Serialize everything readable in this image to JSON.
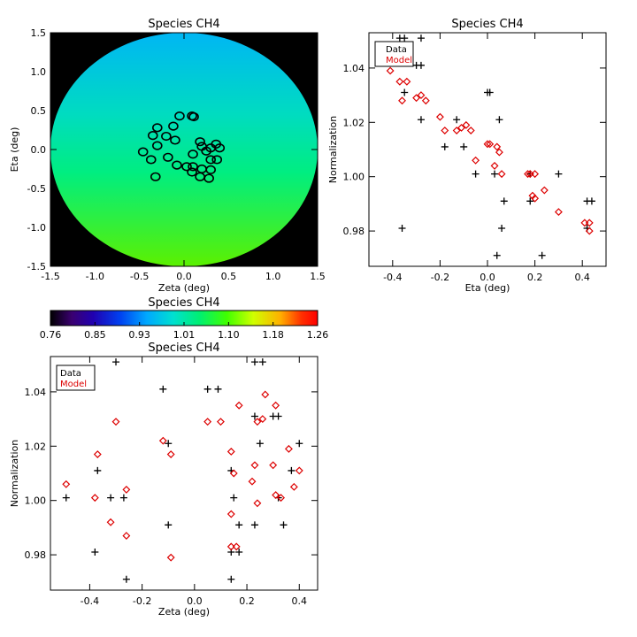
{
  "colors": {
    "data_marker": "#000000",
    "model_marker": "#dd0000",
    "background": "#000000",
    "axis": "#000000"
  },
  "chart_data": [
    {
      "id": "map",
      "type": "heatmap",
      "title": "Species CH4",
      "xlabel": "Zeta (deg)",
      "ylabel": "Eta (deg)",
      "xlim": [
        -1.5,
        1.5
      ],
      "ylim": [
        -1.5,
        1.5
      ],
      "xticks": [
        "-1.5",
        "-1.0",
        "-0.5",
        "0.0",
        "0.5",
        "1.0",
        "1.5"
      ],
      "yticks": [
        "-1.5",
        "-1.0",
        "-0.5",
        "0.0",
        "0.5",
        "1.0",
        "1.5"
      ],
      "field": {
        "radius_deg": 1.5,
        "value_at_top": 0.97,
        "value_at_bottom": 1.1
      },
      "ellipses": [
        [
          -0.05,
          0.43
        ],
        [
          0.09,
          0.43
        ],
        [
          0.11,
          0.42
        ],
        [
          -0.12,
          0.3
        ],
        [
          -0.3,
          0.28
        ],
        [
          -0.35,
          0.18
        ],
        [
          -0.2,
          0.17
        ],
        [
          -0.1,
          0.12
        ],
        [
          0.18,
          0.1
        ],
        [
          0.36,
          0.07
        ],
        [
          0.2,
          0.04
        ],
        [
          -0.3,
          0.05
        ],
        [
          0.3,
          0.02
        ],
        [
          0.4,
          0.02
        ],
        [
          -0.46,
          -0.03
        ],
        [
          0.25,
          -0.02
        ],
        [
          0.1,
          -0.06
        ],
        [
          -0.18,
          -0.1
        ],
        [
          -0.37,
          -0.13
        ],
        [
          0.3,
          -0.13
        ],
        [
          0.37,
          -0.13
        ],
        [
          -0.08,
          -0.2
        ],
        [
          0.03,
          -0.22
        ],
        [
          0.1,
          -0.22
        ],
        [
          0.2,
          -0.25
        ],
        [
          0.3,
          -0.26
        ],
        [
          0.09,
          -0.29
        ],
        [
          -0.32,
          -0.35
        ],
        [
          0.18,
          -0.35
        ],
        [
          0.28,
          -0.37
        ]
      ]
    },
    {
      "id": "eta",
      "type": "scatter",
      "title": "Species CH4",
      "xlabel": "Eta (deg)",
      "ylabel": "Normalization",
      "xlim": [
        -0.5,
        0.5
      ],
      "ylim": [
        0.967,
        1.053
      ],
      "xticks": [
        -0.4,
        -0.2,
        0.0,
        0.2,
        0.4
      ],
      "xticklabels": [
        "-0.4",
        "-0.2",
        "0.0",
        "0.2",
        "0.4"
      ],
      "yticks": [
        0.98,
        1.0,
        1.02,
        1.04
      ],
      "yticklabels": [
        "0.98",
        "1.00",
        "1.02",
        "1.04"
      ],
      "legend": {
        "position": "top-left",
        "labels": [
          "Data",
          "Model"
        ]
      },
      "series": [
        {
          "name": "Data",
          "marker": "plus",
          "points": [
            [
              -0.37,
              1.051
            ],
            [
              -0.35,
              1.051
            ],
            [
              -0.28,
              1.051
            ],
            [
              -0.3,
              1.041
            ],
            [
              -0.28,
              1.041
            ],
            [
              -0.35,
              1.031
            ],
            [
              0.0,
              1.031
            ],
            [
              0.01,
              1.031
            ],
            [
              -0.28,
              1.021
            ],
            [
              -0.13,
              1.021
            ],
            [
              0.05,
              1.021
            ],
            [
              -0.18,
              1.011
            ],
            [
              -0.1,
              1.011
            ],
            [
              -0.05,
              1.001
            ],
            [
              0.03,
              1.001
            ],
            [
              0.18,
              1.001
            ],
            [
              0.3,
              1.001
            ],
            [
              0.07,
              0.991
            ],
            [
              0.18,
              0.991
            ],
            [
              0.42,
              0.991
            ],
            [
              0.44,
              0.991
            ],
            [
              -0.36,
              0.981
            ],
            [
              0.06,
              0.981
            ],
            [
              0.42,
              0.981
            ],
            [
              0.04,
              0.971
            ],
            [
              0.23,
              0.971
            ]
          ]
        },
        {
          "name": "Model",
          "marker": "diamond",
          "points": [
            [
              -0.41,
              1.039
            ],
            [
              -0.37,
              1.035
            ],
            [
              -0.34,
              1.035
            ],
            [
              -0.36,
              1.028
            ],
            [
              -0.3,
              1.029
            ],
            [
              -0.28,
              1.03
            ],
            [
              -0.26,
              1.028
            ],
            [
              -0.2,
              1.022
            ],
            [
              -0.18,
              1.017
            ],
            [
              -0.13,
              1.017
            ],
            [
              -0.11,
              1.018
            ],
            [
              -0.09,
              1.019
            ],
            [
              -0.07,
              1.017
            ],
            [
              0.0,
              1.012
            ],
            [
              0.01,
              1.012
            ],
            [
              0.04,
              1.011
            ],
            [
              0.05,
              1.009
            ],
            [
              -0.05,
              1.006
            ],
            [
              0.03,
              1.004
            ],
            [
              0.06,
              1.001
            ],
            [
              0.17,
              1.001
            ],
            [
              0.18,
              1.001
            ],
            [
              0.19,
              0.993
            ],
            [
              0.2,
              0.992
            ],
            [
              0.24,
              0.995
            ],
            [
              0.3,
              0.987
            ],
            [
              0.41,
              0.983
            ],
            [
              0.43,
              0.983
            ],
            [
              0.43,
              0.98
            ],
            [
              0.2,
              1.001
            ]
          ]
        }
      ]
    },
    {
      "id": "zeta",
      "type": "scatter",
      "title": "Species CH4",
      "xlabel": "Zeta (deg)",
      "ylabel": "Normalization",
      "xlim": [
        -0.55,
        0.47
      ],
      "ylim": [
        0.967,
        1.053
      ],
      "xticks": [
        -0.4,
        -0.2,
        0.0,
        0.2,
        0.4
      ],
      "xticklabels": [
        "-0.4",
        "-0.2",
        "0.0",
        "0.2",
        "0.4"
      ],
      "yticks": [
        0.98,
        1.0,
        1.02,
        1.04
      ],
      "yticklabels": [
        "0.98",
        "1.00",
        "1.02",
        "1.04"
      ],
      "legend": {
        "position": "top-left",
        "labels": [
          "Data",
          "Model"
        ]
      },
      "series": [
        {
          "name": "Data",
          "marker": "plus",
          "points": [
            [
              -0.3,
              1.051
            ],
            [
              0.23,
              1.051
            ],
            [
              0.26,
              1.051
            ],
            [
              -0.12,
              1.041
            ],
            [
              0.05,
              1.041
            ],
            [
              0.09,
              1.041
            ],
            [
              0.23,
              1.031
            ],
            [
              0.3,
              1.031
            ],
            [
              0.32,
              1.031
            ],
            [
              -0.1,
              1.021
            ],
            [
              0.25,
              1.021
            ],
            [
              0.4,
              1.021
            ],
            [
              -0.37,
              1.011
            ],
            [
              0.14,
              1.011
            ],
            [
              0.37,
              1.011
            ],
            [
              -0.49,
              1.001
            ],
            [
              -0.32,
              1.001
            ],
            [
              -0.27,
              1.001
            ],
            [
              0.15,
              1.001
            ],
            [
              0.32,
              1.001
            ],
            [
              -0.1,
              0.991
            ],
            [
              0.17,
              0.991
            ],
            [
              0.23,
              0.991
            ],
            [
              0.34,
              0.991
            ],
            [
              -0.38,
              0.981
            ],
            [
              0.14,
              0.981
            ],
            [
              0.17,
              0.981
            ],
            [
              -0.26,
              0.971
            ],
            [
              0.14,
              0.971
            ]
          ]
        },
        {
          "name": "Model",
          "marker": "diamond",
          "points": [
            [
              -0.49,
              1.006
            ],
            [
              -0.37,
              1.017
            ],
            [
              -0.3,
              1.029
            ],
            [
              -0.38,
              1.001
            ],
            [
              -0.32,
              0.992
            ],
            [
              -0.26,
              1.004
            ],
            [
              -0.26,
              0.987
            ],
            [
              -0.12,
              1.022
            ],
            [
              -0.09,
              1.017
            ],
            [
              -0.09,
              0.979
            ],
            [
              0.05,
              1.029
            ],
            [
              0.1,
              1.029
            ],
            [
              0.14,
              1.018
            ],
            [
              0.15,
              1.01
            ],
            [
              0.14,
              0.995
            ],
            [
              0.14,
              0.983
            ],
            [
              0.16,
              0.983
            ],
            [
              0.17,
              1.035
            ],
            [
              0.23,
              1.013
            ],
            [
              0.24,
              1.029
            ],
            [
              0.26,
              1.03
            ],
            [
              0.27,
              1.039
            ],
            [
              0.22,
              1.007
            ],
            [
              0.24,
              0.999
            ],
            [
              0.31,
              1.035
            ],
            [
              0.3,
              1.013
            ],
            [
              0.31,
              1.002
            ],
            [
              0.33,
              1.001
            ],
            [
              0.36,
              1.019
            ],
            [
              0.38,
              1.005
            ],
            [
              0.4,
              1.011
            ]
          ]
        }
      ]
    }
  ],
  "colorbar": {
    "title": "Species CH4",
    "ticklabels": [
      "0.76",
      "0.85",
      "0.93",
      "1.01",
      "1.10",
      "1.18",
      "1.26"
    ]
  }
}
